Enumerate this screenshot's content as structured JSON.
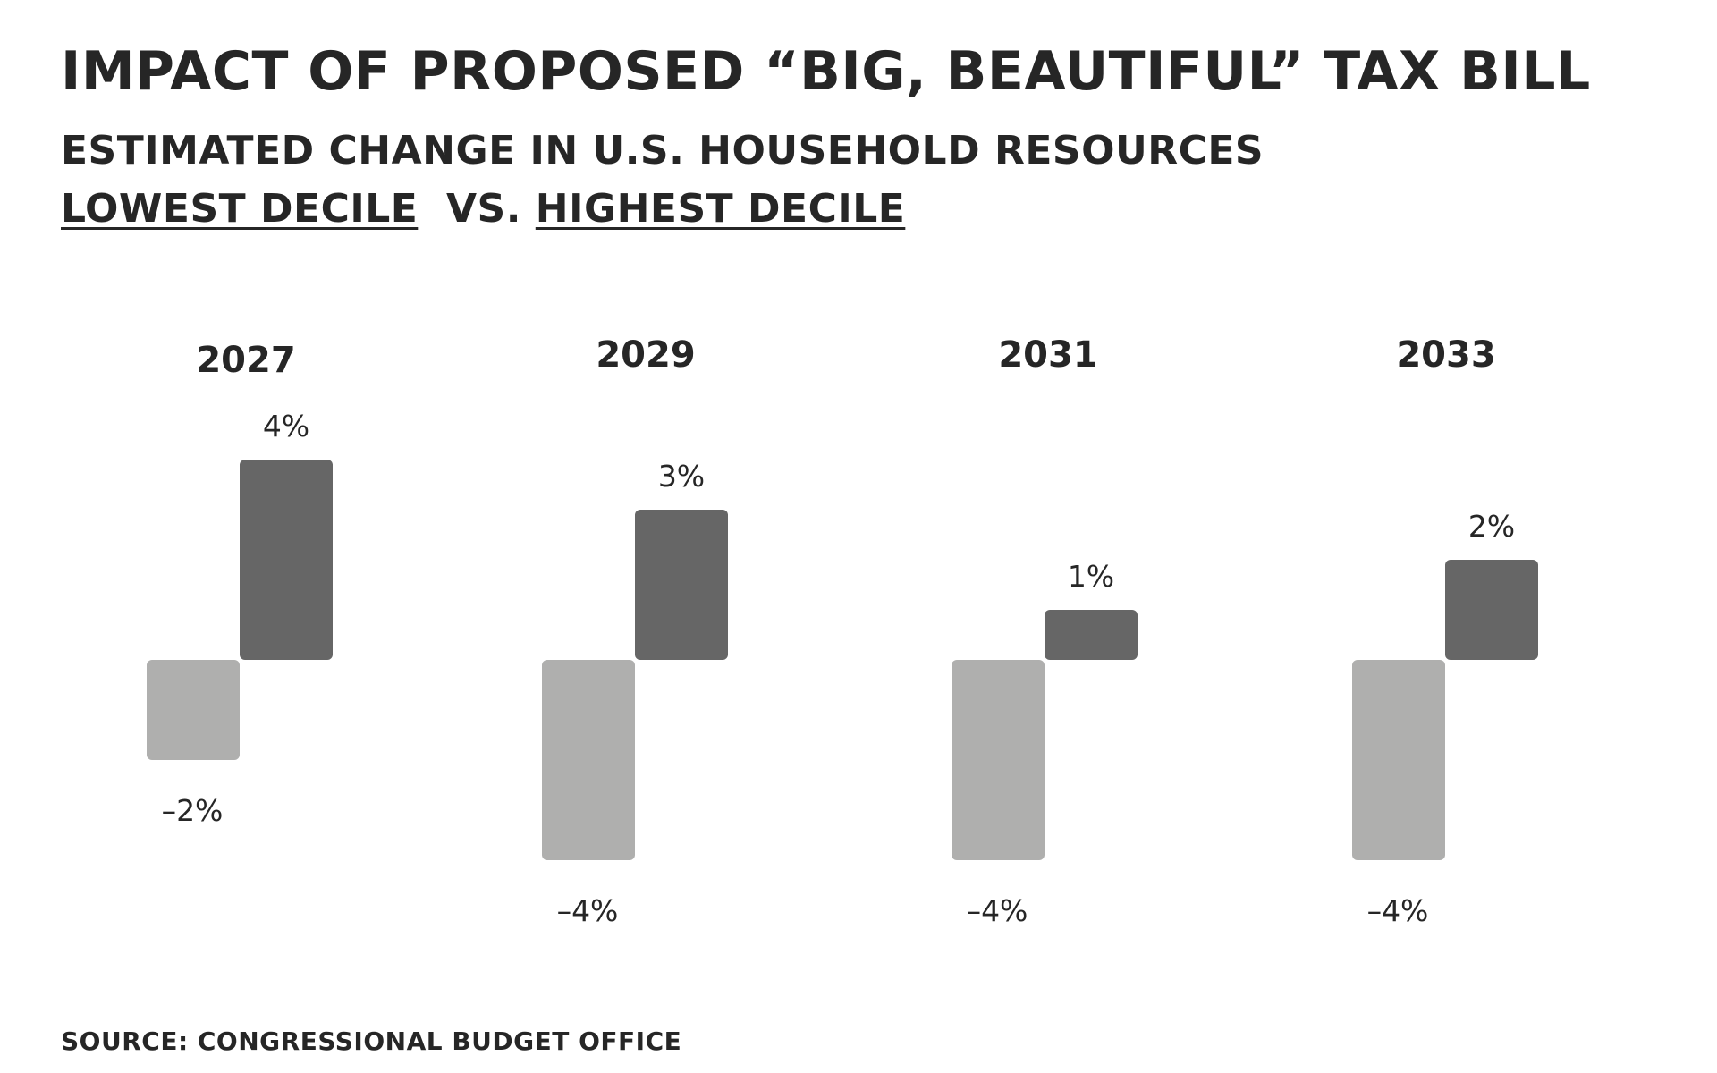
{
  "title": "Impact of proposed “Big, Beautiful” tax bill",
  "subtitle": "Estimated change in U.S. household resources",
  "legend": {
    "lowest": "Lowest decile",
    "vs": "vs.",
    "highest": "Highest decile"
  },
  "source": "Source: Congressional Budget Office",
  "colors": {
    "lowest": "#afafae",
    "highest": "#666666",
    "text": "#262626"
  },
  "chart_data": {
    "type": "bar",
    "title": "Impact of proposed “Big, Beautiful” tax bill",
    "subtitle": "Estimated change in U.S. household resources",
    "categories": [
      "2027",
      "2029",
      "2031",
      "2033"
    ],
    "series": [
      {
        "name": "Lowest decile",
        "values": [
          -2,
          -4,
          -4,
          -4
        ],
        "labels": [
          "–2%",
          "–4%",
          "–4%",
          "–4%"
        ]
      },
      {
        "name": "Highest decile",
        "values": [
          4,
          3,
          1,
          2
        ],
        "labels": [
          "4%",
          "3%",
          "1%",
          "2%"
        ]
      }
    ],
    "unit": "%",
    "grid": false,
    "legend": "top-left"
  }
}
